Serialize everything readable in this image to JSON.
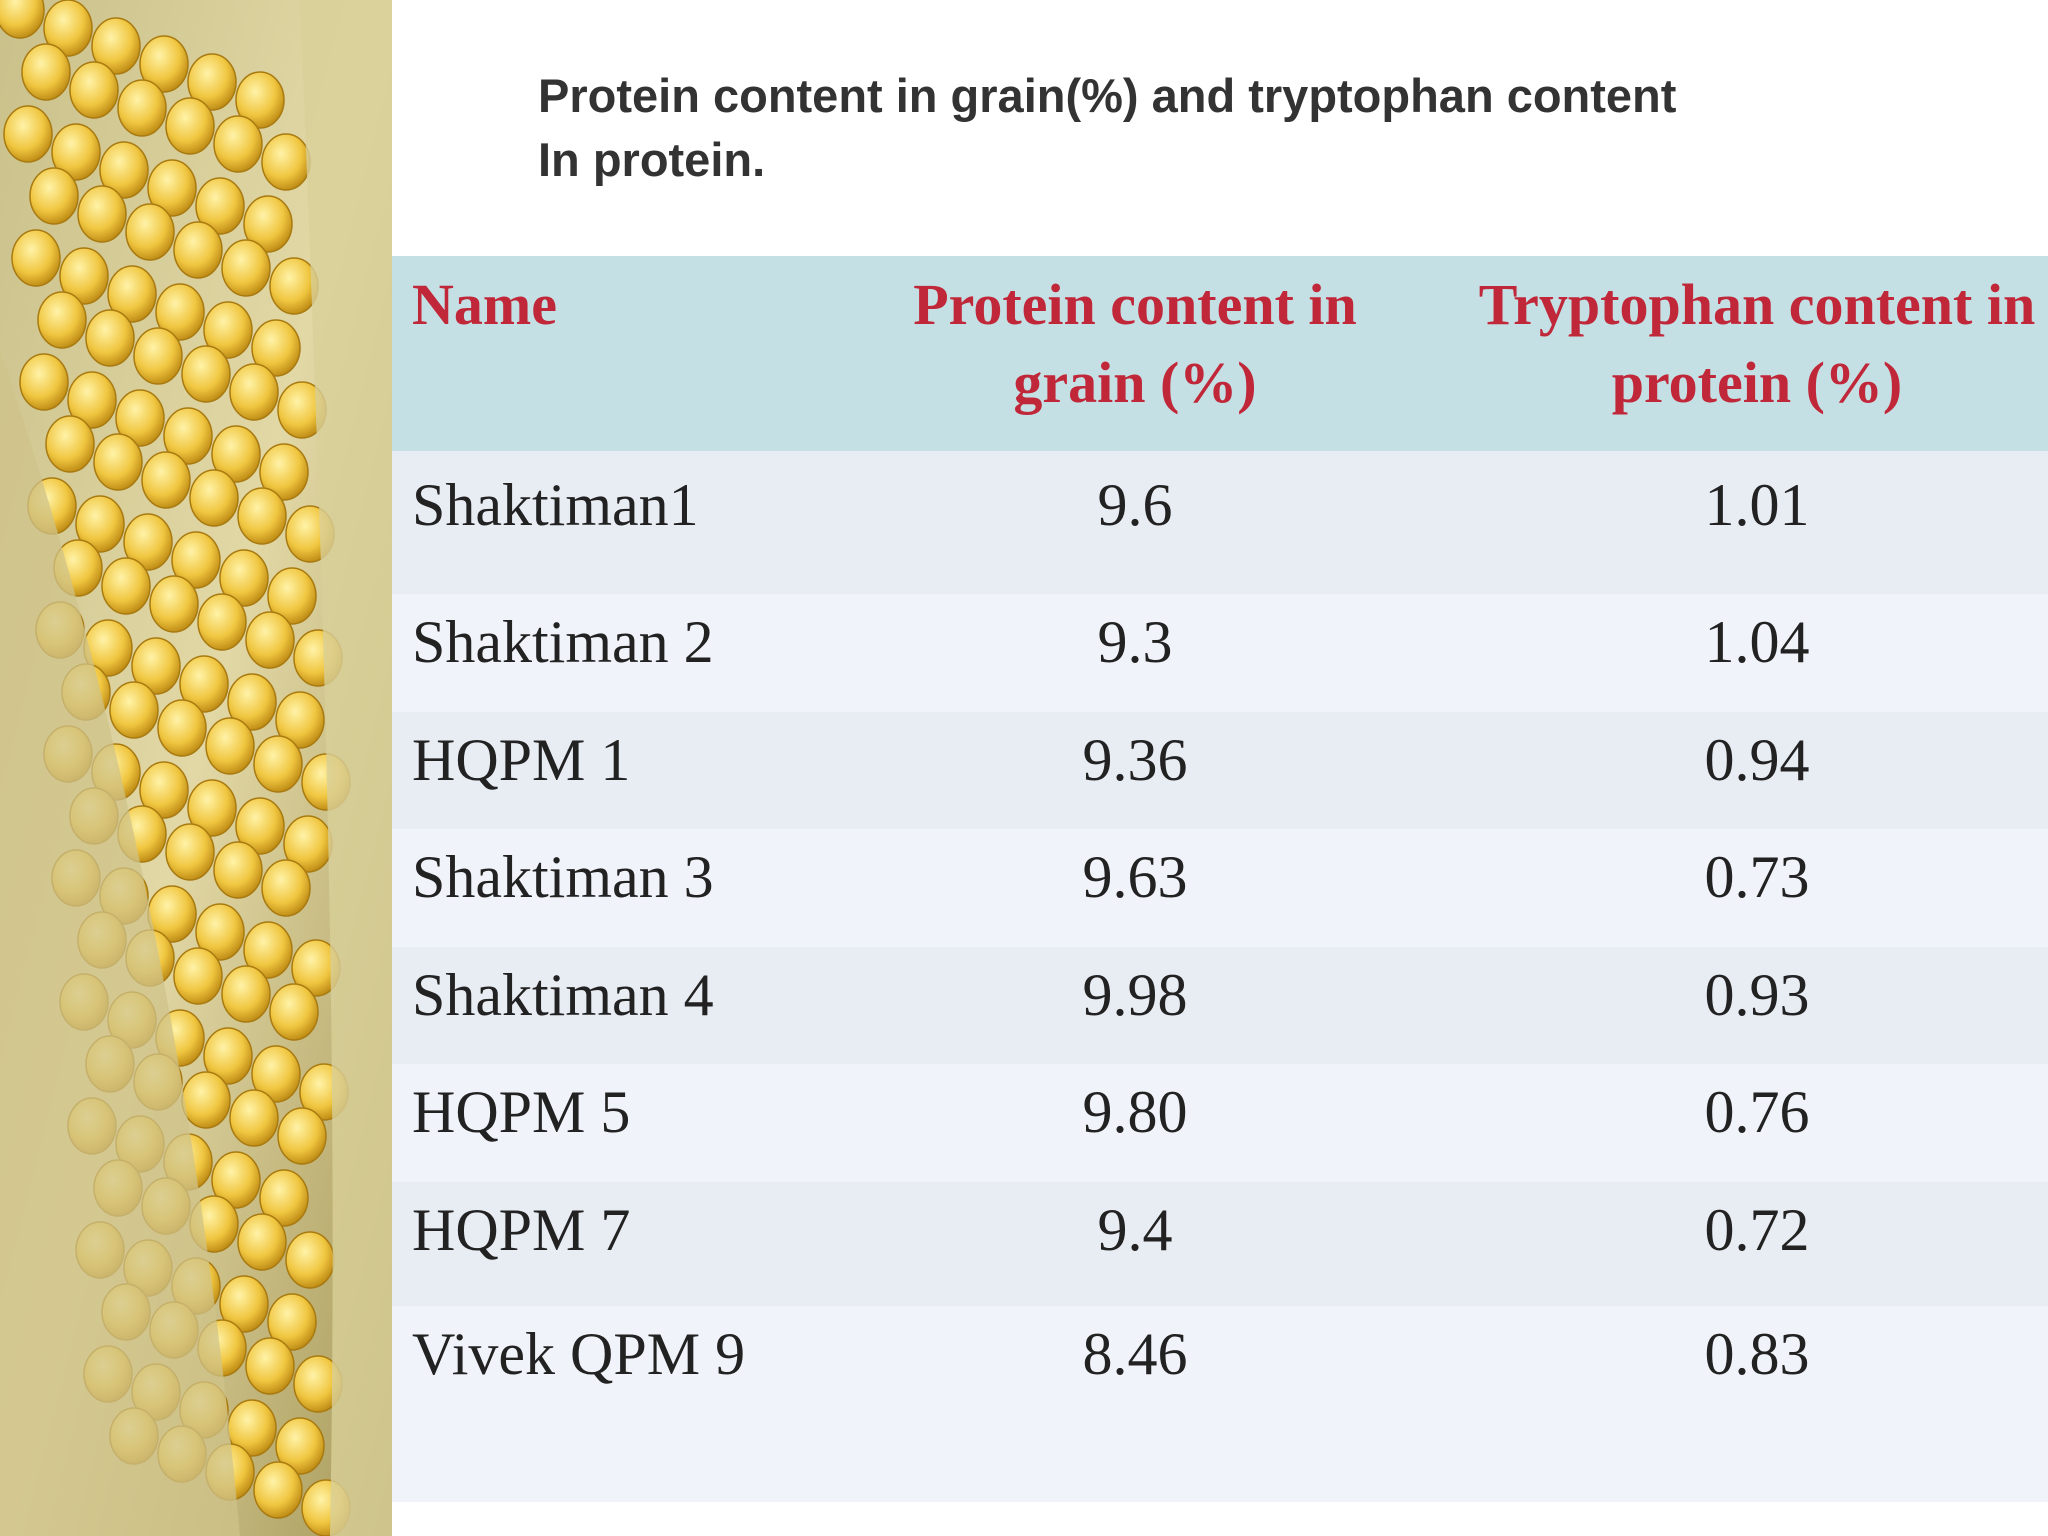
{
  "title": {
    "line1": "Protein content in grain(%) and tryptophan content",
    "line2": "In protein."
  },
  "table": {
    "header": [
      "Name",
      "Protein content in grain (%)",
      "Tryptophan content in protein (%)"
    ],
    "rows": [
      [
        "Shaktiman1",
        "9.6",
        "1.01"
      ],
      [
        "Shaktiman 2",
        "9.3",
        "1.04"
      ],
      [
        "HQPM 1",
        "9.36",
        "0.94"
      ],
      [
        "Shaktiman 3",
        "9.63",
        "0.73"
      ],
      [
        "Shaktiman 4",
        "9.98",
        "0.93"
      ],
      [
        "HQPM 5",
        "9.80",
        "0.76"
      ],
      [
        "HQPM 7",
        "9.4",
        "0.72"
      ],
      [
        "Vivek QPM 9",
        "8.46",
        "0.83"
      ]
    ]
  }
}
